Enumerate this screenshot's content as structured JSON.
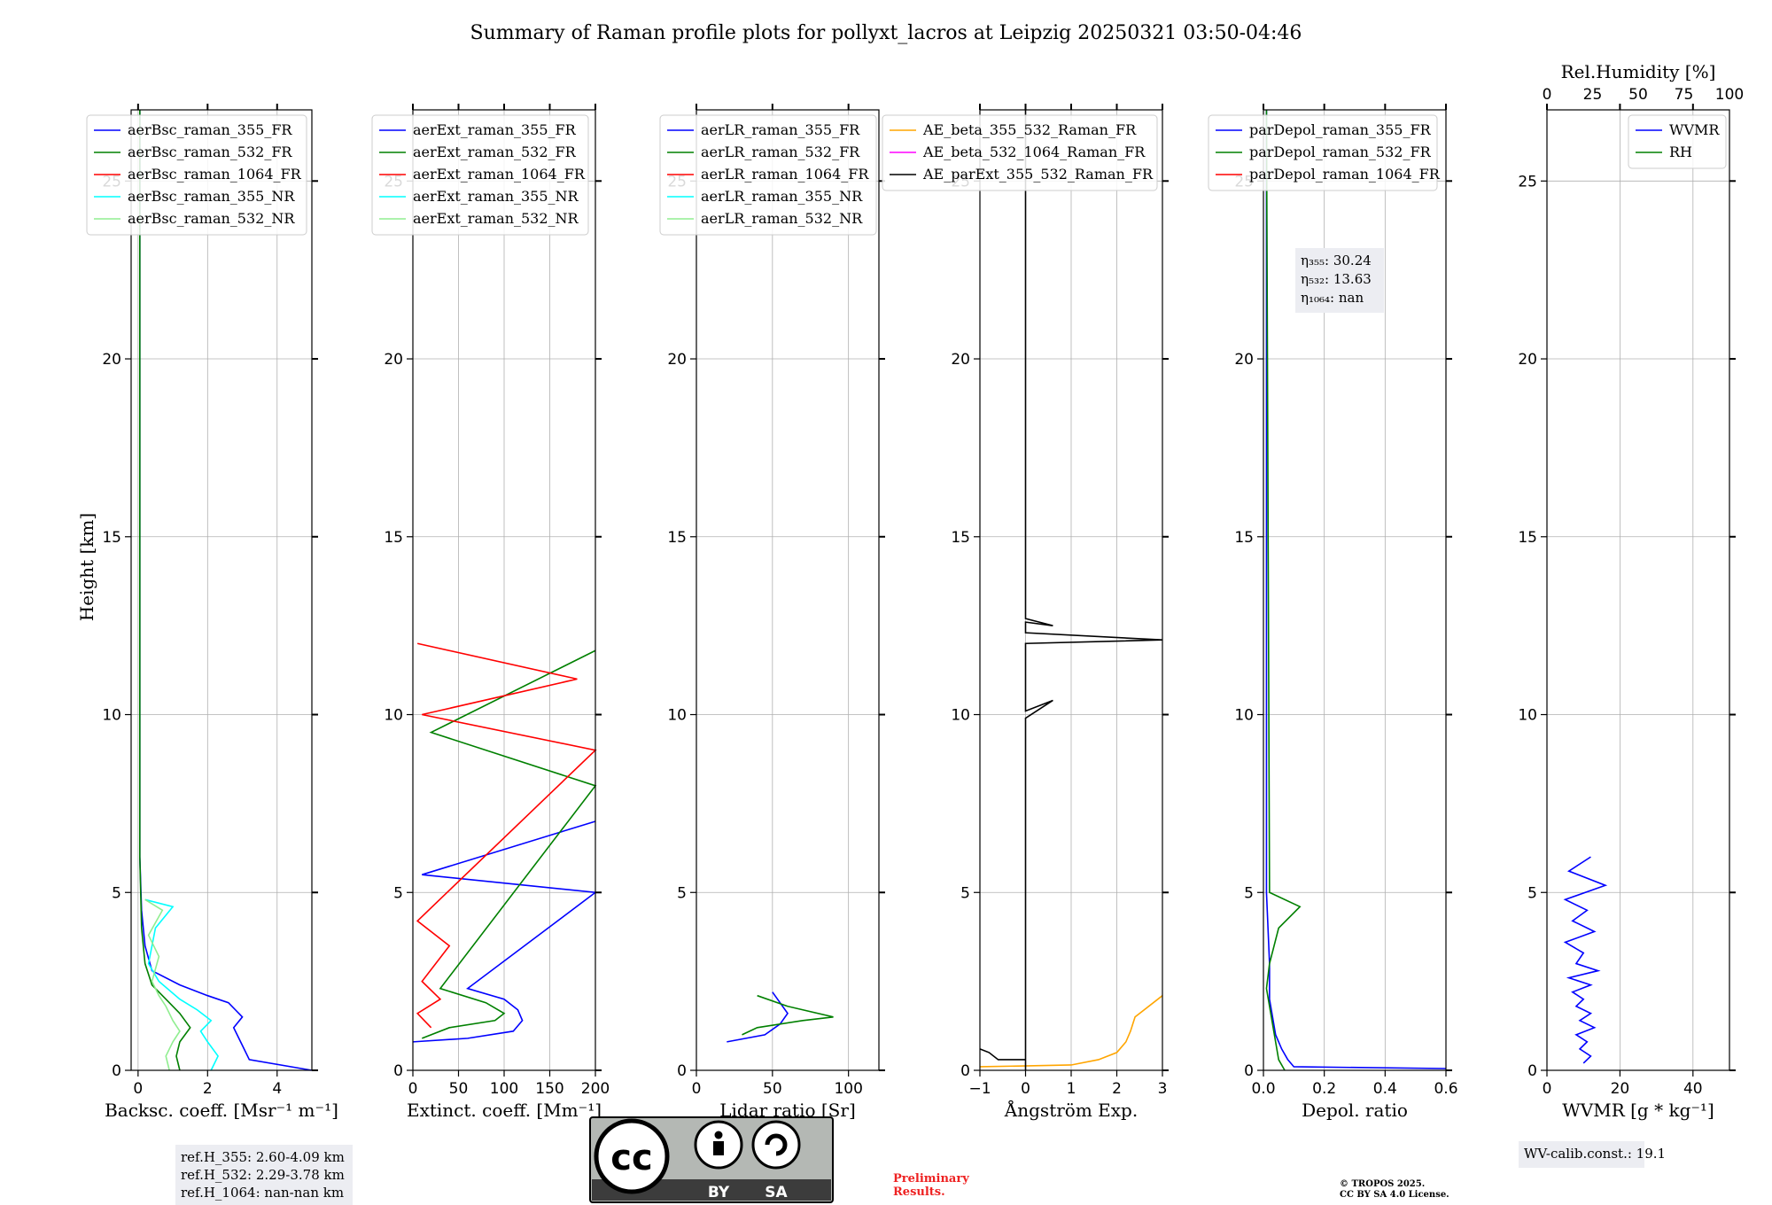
{
  "figure": {
    "title": "Summary of Raman profile plots for pollyxt_lacros at Leipzig 20250321 03:50-04:46",
    "ylabel": "Height [km]",
    "preliminary": [
      "Preliminary",
      "Results."
    ],
    "copyright": [
      "© TROPOS 2025.",
      "CC BY SA 4.0 License."
    ],
    "license_badge": {
      "by": "BY",
      "sa": "SA",
      "cc": "cc"
    },
    "colors": {
      "blue": "#0000ff",
      "green": "#008000",
      "red": "#ff0000",
      "cyan": "#00ffff",
      "lightgreen": "#90ee90",
      "orange": "#ffa500",
      "magenta": "#ff00ff",
      "black": "#000000"
    }
  },
  "chart_data": [
    {
      "type": "line",
      "xlabel": "Backsc. coeff. [Msr⁻¹ m⁻¹]",
      "ylabel": "Height [km]",
      "xlim": [
        -0.2,
        5
      ],
      "ylim": [
        0,
        27
      ],
      "xticks": [
        0,
        2,
        4
      ],
      "yticks": [
        0,
        5,
        10,
        15,
        20,
        25
      ],
      "legend": [
        "aerBsc_raman_355_FR",
        "aerBsc_raman_532_FR",
        "aerBsc_raman_1064_FR",
        "aerBsc_raman_355_NR",
        "aerBsc_raman_532_NR"
      ],
      "legend_colors": [
        "#0000ff",
        "#008000",
        "#ff0000",
        "#00ffff",
        "#90ee90"
      ],
      "info": [
        "ref.H_355: 2.60-4.09 km",
        "ref.H_532: 2.29-3.78 km",
        "ref.H_1064: nan-nan km"
      ],
      "series": [
        {
          "name": "aerBsc_raman_355_FR",
          "color": "#0000ff",
          "x": [
            5.0,
            3.2,
            3.05,
            2.9,
            2.75,
            3.0,
            2.8,
            2.6,
            2.0,
            1.2,
            0.4,
            0.2,
            0.1,
            0.05,
            0.05,
            0.05
          ],
          "y": [
            0.0,
            0.3,
            0.6,
            0.9,
            1.2,
            1.5,
            1.7,
            1.9,
            2.1,
            2.4,
            2.8,
            3.5,
            4.5,
            6.0,
            10.0,
            27.0
          ]
        },
        {
          "name": "aerBsc_raman_532_FR",
          "color": "#008000",
          "x": [
            1.2,
            1.1,
            1.2,
            1.5,
            1.2,
            0.8,
            0.4,
            0.2,
            0.1,
            0.05,
            0.05,
            0.05
          ],
          "y": [
            0.0,
            0.4,
            0.8,
            1.2,
            1.6,
            2.0,
            2.4,
            3.0,
            4.0,
            6.0,
            12.0,
            27.0
          ]
        },
        {
          "name": "aerBsc_raman_1064_FR",
          "color": "#ff0000",
          "x": [],
          "y": []
        },
        {
          "name": "aerBsc_raman_355_NR",
          "color": "#00ffff",
          "x": [
            2.1,
            2.3,
            2.0,
            1.8,
            2.1,
            1.7,
            1.2,
            0.6,
            0.3,
            0.5,
            1.0,
            0.2
          ],
          "y": [
            0.0,
            0.4,
            0.8,
            1.1,
            1.4,
            1.7,
            2.0,
            2.5,
            3.0,
            4.0,
            4.6,
            4.8
          ]
        },
        {
          "name": "aerBsc_raman_532_NR",
          "color": "#90ee90",
          "x": [
            0.9,
            0.8,
            1.0,
            1.2,
            1.0,
            0.8,
            0.6,
            0.4,
            0.6,
            0.3,
            0.7,
            0.2
          ],
          "y": [
            0.0,
            0.4,
            0.8,
            1.1,
            1.4,
            1.8,
            2.1,
            2.5,
            3.2,
            3.8,
            4.5,
            4.8
          ]
        }
      ]
    },
    {
      "type": "line",
      "xlabel": "Extinct. coeff. [Mm⁻¹]",
      "xlim": [
        0,
        200
      ],
      "ylim": [
        0,
        27
      ],
      "xticks": [
        0,
        50,
        100,
        150,
        200
      ],
      "yticks": [
        0,
        5,
        10,
        15,
        20,
        25
      ],
      "legend": [
        "aerExt_raman_355_FR",
        "aerExt_raman_532_FR",
        "aerExt_raman_1064_FR",
        "aerExt_raman_355_NR",
        "aerExt_raman_532_NR"
      ],
      "legend_colors": [
        "#0000ff",
        "#008000",
        "#ff0000",
        "#00ffff",
        "#90ee90"
      ],
      "series": [
        {
          "name": "aerExt_raman_355_FR",
          "color": "#0000ff",
          "x": [
            0,
            60,
            110,
            120,
            115,
            100,
            60,
            200,
            10,
            200
          ],
          "y": [
            0.8,
            0.9,
            1.1,
            1.4,
            1.7,
            2.0,
            2.3,
            5.0,
            5.5,
            7.0
          ]
        },
        {
          "name": "aerExt_raman_532_FR",
          "color": "#008000",
          "x": [
            10,
            40,
            90,
            100,
            80,
            30,
            200,
            20,
            200
          ],
          "y": [
            0.9,
            1.2,
            1.4,
            1.6,
            1.9,
            2.3,
            8.0,
            9.5,
            11.8
          ]
        },
        {
          "name": "aerExt_raman_1064_FR",
          "color": "#ff0000",
          "x": [
            20,
            5,
            30,
            10,
            40,
            5,
            200,
            10,
            180,
            5
          ],
          "y": [
            1.2,
            1.6,
            2.0,
            2.5,
            3.5,
            4.2,
            9.0,
            10.0,
            11.0,
            12.0
          ]
        },
        {
          "name": "aerExt_raman_355_NR",
          "color": "#00ffff",
          "x": [],
          "y": []
        },
        {
          "name": "aerExt_raman_532_NR",
          "color": "#90ee90",
          "x": [],
          "y": []
        }
      ]
    },
    {
      "type": "line",
      "xlabel": "Lidar ratio [Sr]",
      "xlim": [
        0,
        120
      ],
      "ylim": [
        0,
        27
      ],
      "xticks": [
        0,
        50,
        100
      ],
      "yticks": [
        0,
        5,
        10,
        15,
        20,
        25
      ],
      "legend": [
        "aerLR_raman_355_FR",
        "aerLR_raman_532_FR",
        "aerLR_raman_1064_FR",
        "aerLR_raman_355_NR",
        "aerLR_raman_532_NR"
      ],
      "legend_colors": [
        "#0000ff",
        "#008000",
        "#ff0000",
        "#00ffff",
        "#90ee90"
      ],
      "series": [
        {
          "name": "aerLR_raman_355_FR",
          "color": "#0000ff",
          "x": [
            20,
            45,
            55,
            60,
            55,
            50
          ],
          "y": [
            0.8,
            1.0,
            1.3,
            1.6,
            1.9,
            2.2
          ]
        },
        {
          "name": "aerLR_raman_532_FR",
          "color": "#008000",
          "x": [
            30,
            40,
            70,
            90,
            60,
            40
          ],
          "y": [
            1.0,
            1.2,
            1.4,
            1.5,
            1.8,
            2.1
          ]
        },
        {
          "name": "aerLR_raman_1064_FR",
          "color": "#ff0000",
          "x": [],
          "y": []
        },
        {
          "name": "aerLR_raman_355_NR",
          "color": "#00ffff",
          "x": [],
          "y": []
        },
        {
          "name": "aerLR_raman_532_NR",
          "color": "#90ee90",
          "x": [],
          "y": []
        }
      ]
    },
    {
      "type": "line",
      "xlabel": "Ångström Exp.",
      "xlim": [
        -1,
        3
      ],
      "ylim": [
        0,
        27
      ],
      "xticks": [
        -1,
        0,
        1,
        2,
        3
      ],
      "yticks": [
        0,
        5,
        10,
        15,
        20,
        25
      ],
      "legend": [
        "AE_beta_355_532_Raman_FR",
        "AE_beta_532_1064_Raman_FR",
        "AE_parExt_355_532_Raman_FR"
      ],
      "legend_colors": [
        "#ffa500",
        "#ff00ff",
        "#000000"
      ],
      "series": [
        {
          "name": "AE_beta_355_532_Raman_FR",
          "color": "#ffa500",
          "x": [
            -1,
            1.0,
            1.6,
            2.0,
            2.2,
            2.3,
            2.4,
            3.0
          ],
          "y": [
            0.1,
            0.15,
            0.3,
            0.5,
            0.8,
            1.1,
            1.5,
            2.1
          ]
        },
        {
          "name": "AE_beta_532_1064_Raman_FR",
          "color": "#ff00ff",
          "x": [],
          "y": []
        },
        {
          "name": "AE_parExt_355_532_Raman_FR",
          "color": "#000000",
          "x": [
            -1,
            -0.8,
            -0.6,
            0,
            0,
            0,
            0.6,
            0,
            0,
            3,
            0,
            0,
            0.6,
            0,
            0,
            0
          ],
          "y": [
            0.6,
            0.5,
            0.3,
            0.3,
            0,
            9.9,
            10.4,
            10.1,
            12.0,
            12.1,
            12.3,
            12.6,
            12.5,
            12.7,
            20,
            27
          ]
        }
      ]
    },
    {
      "type": "line",
      "xlabel": "Depol. ratio",
      "xlim": [
        0,
        0.6
      ],
      "ylim": [
        0,
        27
      ],
      "xticks": [
        0.0,
        0.2,
        0.4,
        0.6
      ],
      "yticks": [
        0,
        5,
        10,
        15,
        20,
        25
      ],
      "legend": [
        "parDepol_raman_355_FR",
        "parDepol_raman_532_FR",
        "parDepol_raman_1064_FR"
      ],
      "legend_colors": [
        "#0000ff",
        "#008000",
        "#ff0000"
      ],
      "info": [
        "η₃₅₅: 30.24",
        "η₅₃₂: 13.63",
        "η₁₀₆₄: nan"
      ],
      "series": [
        {
          "name": "parDepol_raman_355_FR",
          "color": "#0000ff",
          "x": [
            0.6,
            0.1,
            0.08,
            0.06,
            0.04,
            0.03,
            0.02,
            0.02,
            0.01,
            0.01
          ],
          "y": [
            0.05,
            0.1,
            0.3,
            0.6,
            1.0,
            1.5,
            2.0,
            3.0,
            5.0,
            27.0
          ]
        },
        {
          "name": "parDepol_raman_532_FR",
          "color": "#008000",
          "x": [
            0.07,
            0.05,
            0.04,
            0.03,
            0.02,
            0.01,
            0.02,
            0.05,
            0.12,
            0.02,
            0.01
          ],
          "y": [
            0.0,
            0.3,
            0.8,
            1.3,
            1.8,
            2.3,
            3.0,
            4.0,
            4.6,
            5.0,
            27.0
          ]
        },
        {
          "name": "parDepol_raman_1064_FR",
          "color": "#ff0000",
          "x": [],
          "y": []
        }
      ]
    },
    {
      "type": "line",
      "xlabel": "WVMR [g * kg⁻¹]",
      "xlim": [
        0,
        50
      ],
      "ylim": [
        0,
        27
      ],
      "xticks": [
        0,
        20,
        40
      ],
      "yticks": [
        0,
        5,
        10,
        15,
        20,
        25
      ],
      "top_label": "Rel.Humidity [%]",
      "top_ticks": [
        0,
        25,
        50,
        75,
        100
      ],
      "legend": [
        "WVMR",
        "RH"
      ],
      "legend_colors": [
        "#0000ff",
        "#008000"
      ],
      "info": [
        "WV-calib.const.: 19.1"
      ],
      "series": [
        {
          "name": "WVMR",
          "color": "#0000ff",
          "x": [
            10,
            12,
            9,
            11,
            8,
            13,
            9,
            12,
            8,
            10,
            7,
            12,
            6,
            14,
            8,
            10,
            5,
            13,
            7,
            11,
            5,
            16,
            6,
            12
          ],
          "y": [
            0.2,
            0.4,
            0.6,
            0.8,
            1.0,
            1.2,
            1.4,
            1.6,
            1.8,
            2.0,
            2.2,
            2.4,
            2.6,
            2.8,
            3.0,
            3.3,
            3.6,
            3.9,
            4.2,
            4.5,
            4.8,
            5.2,
            5.6,
            6.0
          ]
        },
        {
          "name": "RH",
          "color": "#008000",
          "x": [],
          "y": []
        }
      ]
    }
  ]
}
